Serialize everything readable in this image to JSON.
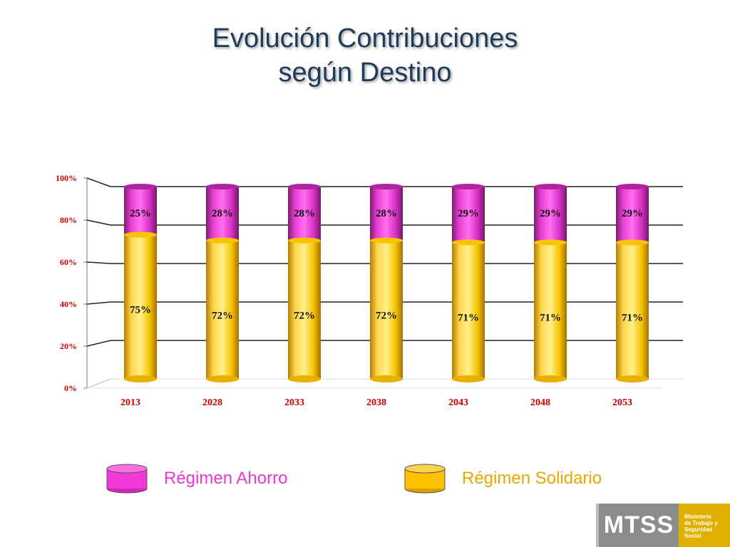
{
  "title": {
    "line1": "Evolución Contribuciones",
    "line2": "según Destino"
  },
  "chart_data": {
    "type": "bar",
    "stacked": true,
    "categories": [
      "2013",
      "2028",
      "2033",
      "2038",
      "2043",
      "2048",
      "2053"
    ],
    "series": [
      {
        "name": "Régimen Solidario",
        "values": [
          75,
          72,
          72,
          72,
          71,
          71,
          71
        ],
        "labels": [
          "75%",
          "72%",
          "72%",
          "72%",
          "71%",
          "71%",
          "71%"
        ],
        "color": "#f2b705"
      },
      {
        "name": "Régimen Ahorro",
        "values": [
          25,
          28,
          28,
          28,
          29,
          29,
          29
        ],
        "labels": [
          "25%",
          "28%",
          "28%",
          "28%",
          "29%",
          "29%",
          "29%"
        ],
        "color": "#e23ed2"
      }
    ],
    "y_ticks": [
      "0%",
      "20%",
      "40%",
      "60%",
      "80%",
      "100%"
    ],
    "ylim": [
      0,
      100
    ],
    "grid": true,
    "tick_label_color": "#cc0000",
    "legend_position": "bottom"
  },
  "legend": {
    "ahorro_label": "Régimen Ahorro",
    "solidario_label": "Régimen Solidario",
    "ahorro_color": "#f039d8",
    "solidario_color": "#ffc000"
  },
  "logo": {
    "acronym": "MTSS",
    "line1": "Ministerio",
    "line2": "de Trabajo y",
    "line3": "Seguridad",
    "line4": "Social"
  }
}
